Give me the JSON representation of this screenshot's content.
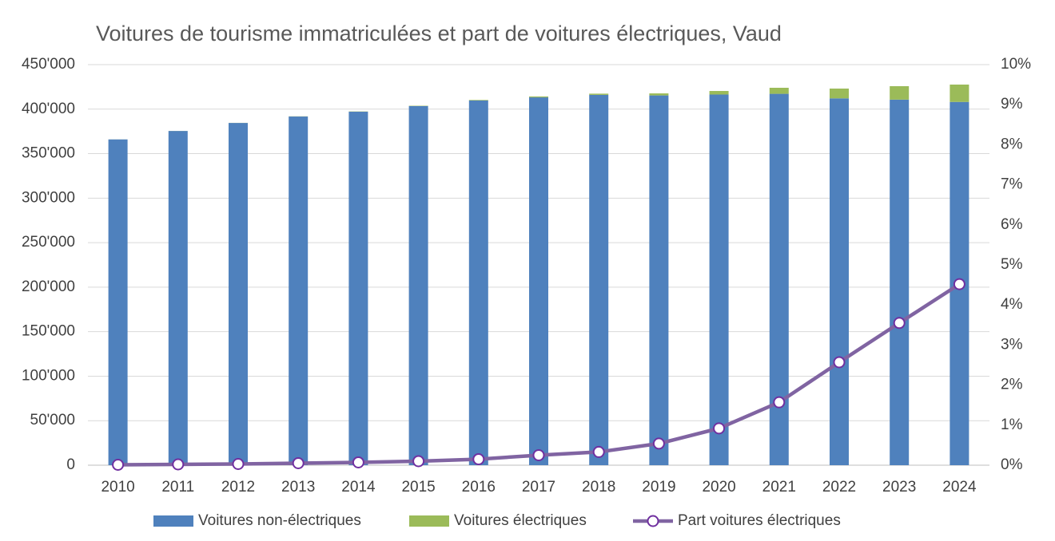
{
  "chart_data": {
    "type": "bar",
    "title": "Voitures de tourisme immatriculées et part de voitures électriques, Vaud",
    "categories": [
      "2010",
      "2011",
      "2012",
      "2013",
      "2014",
      "2015",
      "2016",
      "2017",
      "2018",
      "2019",
      "2020",
      "2021",
      "2022",
      "2023",
      "2024"
    ],
    "series": [
      {
        "name": "Voitures non-électriques",
        "color": "#4f81bd",
        "type": "bar",
        "values": [
          366000,
          375500,
          384500,
          391700,
          397100,
          403400,
          409700,
          413200,
          416000,
          415400,
          416400,
          417200,
          412100,
          410700,
          408100
        ]
      },
      {
        "name": "Voitures électriques",
        "color": "#9bbb59",
        "type": "bar",
        "values": [
          40,
          75,
          115,
          200,
          280,
          400,
          615,
          1035,
          1375,
          2300,
          4000,
          6800,
          11000,
          15100,
          19500
        ]
      },
      {
        "name": "Part voitures électriques",
        "color": "#8064a2",
        "type": "line",
        "axis": "y2",
        "values": [
          0.01,
          0.02,
          0.03,
          0.05,
          0.07,
          0.1,
          0.15,
          0.25,
          0.33,
          0.54,
          0.92,
          1.57,
          2.57,
          3.55,
          4.52
        ]
      }
    ],
    "stacked": true,
    "ylim": [
      0,
      450000
    ],
    "yticks": [
      0,
      {
        "value": 50000,
        "label": "50'000"
      },
      {
        "value": 100000,
        "label": "100'000"
      },
      {
        "value": 150000,
        "label": "150'000"
      },
      {
        "value": 200000,
        "label": "200'000"
      },
      {
        "value": 250000,
        "label": "250'000"
      },
      {
        "value": 300000,
        "label": "300'000"
      },
      {
        "value": 350000,
        "label": "350'000"
      },
      {
        "value": 400000,
        "label": "400'000"
      },
      {
        "value": 450000,
        "label": "450'000"
      }
    ],
    "y2lim": [
      0,
      10
    ],
    "y2ticks": [
      {
        "value": 0,
        "label": "0%"
      },
      {
        "value": 1,
        "label": "1%"
      },
      {
        "value": 2,
        "label": "2%"
      },
      {
        "value": 3,
        "label": "3%"
      },
      {
        "value": 4,
        "label": "4%"
      },
      {
        "value": 5,
        "label": "5%"
      },
      {
        "value": 6,
        "label": "6%"
      },
      {
        "value": 7,
        "label": "7%"
      },
      {
        "value": 8,
        "label": "8%"
      },
      {
        "value": 9,
        "label": "9%"
      },
      {
        "value": 10,
        "label": "10%"
      }
    ],
    "grid": true,
    "legend": "bottom"
  }
}
